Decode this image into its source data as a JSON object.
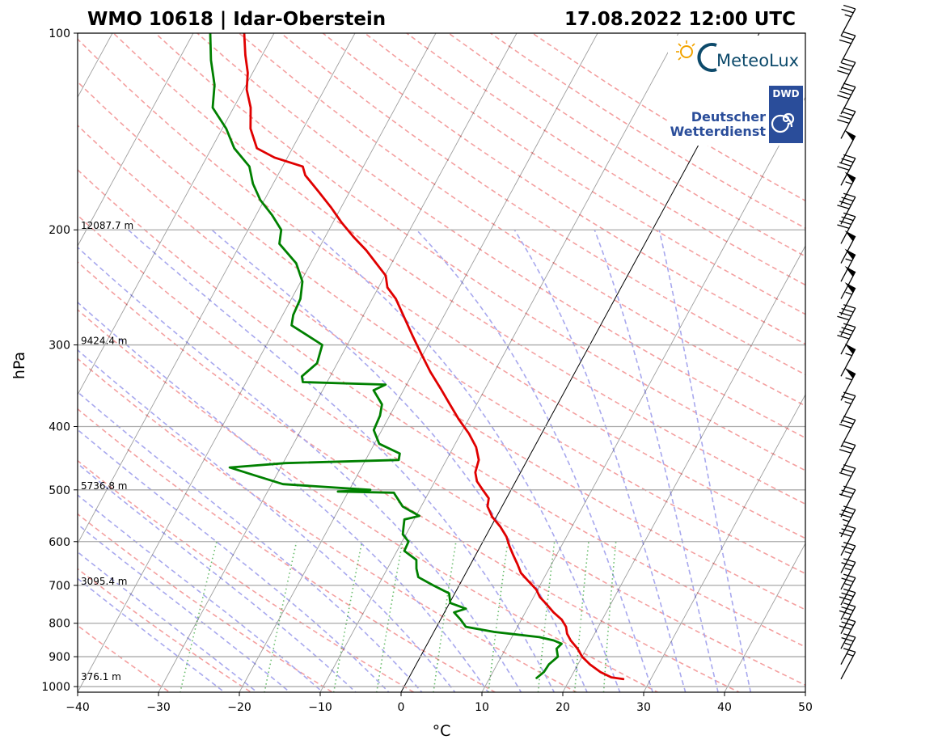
{
  "chart_data": {
    "type": "line",
    "chart_kind": "skew-T log-P sounding",
    "title_left": "WMO 10618 | Idar-Oberstein",
    "title_right": "17.08.2022 12:00 UTC",
    "xlabel": "°C",
    "ylabel": "hPa",
    "xlim": [
      -40,
      50
    ],
    "ylim": [
      1020,
      100
    ],
    "y_scale": "log",
    "x_ticks": [
      "−40",
      "−30",
      "−20",
      "−10",
      "0",
      "10",
      "20",
      "30",
      "40",
      "50"
    ],
    "y_ticks": [
      "100",
      "200",
      "300",
      "400",
      "500",
      "600",
      "700",
      "800",
      "900",
      "1000"
    ],
    "height_labels": [
      {
        "p": 200,
        "text": "12087.7 m"
      },
      {
        "p": 300,
        "text": "9424.4 m"
      },
      {
        "p": 500,
        "text": "5736.8 m"
      },
      {
        "p": 700,
        "text": "3095.4 m"
      },
      {
        "p": 980,
        "text": "376.1 m"
      }
    ],
    "grid": true,
    "series": [
      {
        "id": "temperature",
        "color": "#e00000",
        "points": [
          [
            974,
            26.6
          ],
          [
            968,
            25.0
          ],
          [
            950,
            23.3
          ],
          [
            925,
            21.5
          ],
          [
            900,
            20.0
          ],
          [
            875,
            18.9
          ],
          [
            850,
            17.5
          ],
          [
            830,
            16.6
          ],
          [
            810,
            16.0
          ],
          [
            790,
            15.0
          ],
          [
            770,
            13.5
          ],
          [
            750,
            12.2
          ],
          [
            730,
            10.8
          ],
          [
            710,
            9.8
          ],
          [
            690,
            8.3
          ],
          [
            670,
            6.8
          ],
          [
            650,
            5.8
          ],
          [
            630,
            4.7
          ],
          [
            610,
            3.6
          ],
          [
            590,
            2.6
          ],
          [
            570,
            1.2
          ],
          [
            550,
            -0.5
          ],
          [
            530,
            -1.8
          ],
          [
            515,
            -2.2
          ],
          [
            500,
            -3.5
          ],
          [
            485,
            -4.8
          ],
          [
            470,
            -5.6
          ],
          [
            450,
            -6.0
          ],
          [
            430,
            -7.2
          ],
          [
            410,
            -9.0
          ],
          [
            390,
            -11.2
          ],
          [
            370,
            -13.3
          ],
          [
            350,
            -15.5
          ],
          [
            330,
            -17.9
          ],
          [
            310,
            -20.2
          ],
          [
            290,
            -22.6
          ],
          [
            270,
            -25.1
          ],
          [
            255,
            -27.1
          ],
          [
            245,
            -28.9
          ],
          [
            235,
            -29.9
          ],
          [
            225,
            -31.9
          ],
          [
            215,
            -34.0
          ],
          [
            205,
            -36.5
          ],
          [
            195,
            -38.9
          ],
          [
            185,
            -41.2
          ],
          [
            175,
            -43.8
          ],
          [
            165,
            -46.6
          ],
          [
            160,
            -47.5
          ],
          [
            155,
            -51.6
          ],
          [
            150,
            -54.4
          ],
          [
            140,
            -56.5
          ],
          [
            130,
            -57.9
          ],
          [
            122,
            -59.6
          ],
          [
            115,
            -60.6
          ],
          [
            108,
            -62.1
          ],
          [
            100,
            -63.7
          ]
        ]
      },
      {
        "id": "dewpoint",
        "color": "#008000",
        "points": [
          [
            970,
            15.8
          ],
          [
            950,
            16.3
          ],
          [
            925,
            16.4
          ],
          [
            900,
            17.0
          ],
          [
            875,
            16.3
          ],
          [
            860,
            16.6
          ],
          [
            850,
            15.4
          ],
          [
            840,
            13.4
          ],
          [
            825,
            7.5
          ],
          [
            810,
            3.6
          ],
          [
            790,
            2.5
          ],
          [
            770,
            1.2
          ],
          [
            760,
            2.4
          ],
          [
            745,
            0.1
          ],
          [
            720,
            -0.7
          ],
          [
            700,
            -3.2
          ],
          [
            680,
            -5.6
          ],
          [
            660,
            -6.4
          ],
          [
            640,
            -7.0
          ],
          [
            620,
            -9.1
          ],
          [
            600,
            -9.2
          ],
          [
            585,
            -10.4
          ],
          [
            570,
            -10.8
          ],
          [
            555,
            -11.2
          ],
          [
            548,
            -9.6
          ],
          [
            530,
            -12.3
          ],
          [
            510,
            -13.9
          ],
          [
            505,
            -14.3
          ],
          [
            503,
            -21.3
          ],
          [
            500,
            -17.4
          ],
          [
            490,
            -28.6
          ],
          [
            475,
            -32.7
          ],
          [
            462,
            -36.3
          ],
          [
            455,
            -29.7
          ],
          [
            450,
            -15.9
          ],
          [
            440,
            -16.2
          ],
          [
            425,
            -19.4
          ],
          [
            405,
            -21.0
          ],
          [
            385,
            -21.2
          ],
          [
            370,
            -21.7
          ],
          [
            352,
            -23.7
          ],
          [
            345,
            -22.6
          ],
          [
            342,
            -33.0
          ],
          [
            335,
            -33.5
          ],
          [
            320,
            -32.5
          ],
          [
            300,
            -33.1
          ],
          [
            280,
            -38.2
          ],
          [
            270,
            -38.7
          ],
          [
            255,
            -38.9
          ],
          [
            240,
            -39.8
          ],
          [
            225,
            -41.8
          ],
          [
            210,
            -45.2
          ],
          [
            200,
            -45.9
          ],
          [
            190,
            -48.0
          ],
          [
            180,
            -50.5
          ],
          [
            170,
            -52.5
          ],
          [
            160,
            -54.1
          ],
          [
            150,
            -57.2
          ],
          [
            140,
            -59.5
          ],
          [
            130,
            -62.6
          ],
          [
            120,
            -63.9
          ],
          [
            110,
            -66.0
          ],
          [
            100,
            -67.9
          ]
        ]
      }
    ],
    "reference_lines": {
      "isotherm_color": "#000000",
      "dry_adiabat_color": "#f4a0a0",
      "moist_adiabat_color": "#a8a8ee",
      "mixing_ratio_color": "#4caf50",
      "zero_isotherm": true
    },
    "wind_barbs": [
      {
        "p": 974,
        "speed_kt": 15
      },
      {
        "p": 925,
        "speed_kt": 25
      },
      {
        "p": 875,
        "speed_kt": 30
      },
      {
        "p": 830,
        "speed_kt": 30
      },
      {
        "p": 790,
        "speed_kt": 30
      },
      {
        "p": 750,
        "speed_kt": 25
      },
      {
        "p": 710,
        "speed_kt": 25
      },
      {
        "p": 670,
        "speed_kt": 25
      },
      {
        "p": 630,
        "speed_kt": 30
      },
      {
        "p": 590,
        "speed_kt": 35
      },
      {
        "p": 550,
        "speed_kt": 30
      },
      {
        "p": 510,
        "speed_kt": 30
      },
      {
        "p": 470,
        "speed_kt": 30
      },
      {
        "p": 430,
        "speed_kt": 30
      },
      {
        "p": 395,
        "speed_kt": 25
      },
      {
        "p": 365,
        "speed_kt": 55
      },
      {
        "p": 335,
        "speed_kt": 55
      },
      {
        "p": 310,
        "speed_kt": 40
      },
      {
        "p": 290,
        "speed_kt": 40
      },
      {
        "p": 270,
        "speed_kt": 55
      },
      {
        "p": 255,
        "speed_kt": 50
      },
      {
        "p": 240,
        "speed_kt": 55
      },
      {
        "p": 225,
        "speed_kt": 50
      },
      {
        "p": 210,
        "speed_kt": 40
      },
      {
        "p": 196,
        "speed_kt": 40
      },
      {
        "p": 183,
        "speed_kt": 55
      },
      {
        "p": 171,
        "speed_kt": 40
      },
      {
        "p": 158,
        "speed_kt": 50
      },
      {
        "p": 145,
        "speed_kt": 40
      },
      {
        "p": 133,
        "speed_kt": 40
      },
      {
        "p": 122,
        "speed_kt": 40
      },
      {
        "p": 111,
        "speed_kt": 30
      },
      {
        "p": 101,
        "speed_kt": 25
      }
    ]
  },
  "logos": {
    "meteolux": "MeteoLux",
    "dwd_badge": "DWD",
    "dwd_line1": "Deutscher",
    "dwd_line2": "Wetterdienst"
  }
}
